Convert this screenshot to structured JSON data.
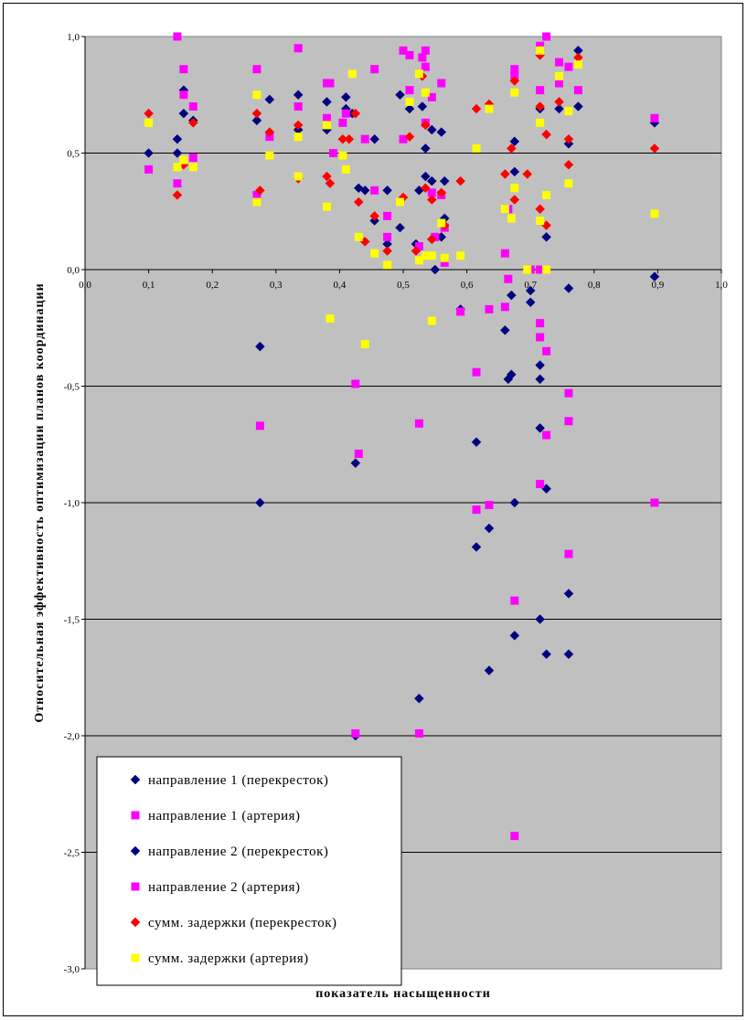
{
  "chart_data": {
    "type": "scatter",
    "title": "",
    "xlabel": "показатель насыщенности",
    "ylabel": "Относительная эффективность оптимизации планов координации",
    "xlim": [
      0,
      1
    ],
    "ylim": [
      -3,
      1
    ],
    "x_ticks": [
      "0,0",
      "0,1",
      "0,2",
      "0,3",
      "0,4",
      "0,5",
      "0,6",
      "0,7",
      "0,8",
      "0,9",
      "1,0"
    ],
    "y_ticks": [
      "1,0",
      "0,5",
      "0,0",
      "-0,5",
      "-1,0",
      "-1,5",
      "-2,0",
      "-2,5",
      "-3,0"
    ],
    "y_tick_values": [
      1,
      0.5,
      0,
      -0.5,
      -1,
      -1.5,
      -2,
      -2.5,
      -3
    ],
    "grid": "horizontal",
    "legend_position": "bottom-left",
    "series": [
      {
        "name": "направление 1 (перекресток)",
        "marker": "diamond",
        "color": "#000080",
        "points": [
          [
            0.1,
            0.5
          ],
          [
            0.145,
            0.56
          ],
          [
            0.145,
            0.5
          ],
          [
            0.155,
            0.77
          ],
          [
            0.155,
            0.67
          ],
          [
            0.17,
            0.64
          ],
          [
            0.27,
            0.64
          ],
          [
            0.29,
            0.73
          ],
          [
            0.335,
            0.75
          ],
          [
            0.335,
            0.6
          ],
          [
            0.38,
            0.72
          ],
          [
            0.38,
            0.6
          ],
          [
            0.41,
            0.69
          ],
          [
            0.41,
            0.74
          ],
          [
            0.42,
            0.67
          ],
          [
            0.43,
            0.35
          ],
          [
            0.44,
            0.34
          ],
          [
            0.455,
            0.56
          ],
          [
            0.455,
            0.21
          ],
          [
            0.475,
            0.34
          ],
          [
            0.475,
            0.11
          ],
          [
            0.495,
            0.75
          ],
          [
            0.495,
            0.18
          ],
          [
            0.51,
            0.69
          ],
          [
            0.52,
            0.11
          ],
          [
            0.525,
            0.34
          ],
          [
            0.53,
            0.7
          ],
          [
            0.535,
            0.52
          ],
          [
            0.535,
            0.4
          ],
          [
            0.545,
            0.6
          ],
          [
            0.545,
            0.38
          ],
          [
            0.545,
            0.13
          ],
          [
            0.55,
            0.0
          ],
          [
            0.56,
            0.59
          ],
          [
            0.56,
            0.14
          ],
          [
            0.565,
            0.38
          ],
          [
            0.565,
            0.22
          ],
          [
            0.59,
            -0.17
          ],
          [
            0.615,
            -0.74
          ],
          [
            0.615,
            -1.19
          ],
          [
            0.635,
            -1.11
          ],
          [
            0.635,
            -1.72
          ],
          [
            0.66,
            -0.26
          ],
          [
            0.665,
            -0.47
          ],
          [
            0.67,
            -0.11
          ],
          [
            0.67,
            -0.45
          ],
          [
            0.675,
            0.42
          ],
          [
            0.675,
            0.55
          ],
          [
            0.675,
            -1.0
          ],
          [
            0.675,
            -1.57
          ],
          [
            0.7,
            -0.09
          ],
          [
            0.7,
            -0.14
          ],
          [
            0.715,
            0.69
          ],
          [
            0.715,
            -0.41
          ],
          [
            0.715,
            -0.47
          ],
          [
            0.715,
            -0.68
          ],
          [
            0.715,
            -1.5
          ],
          [
            0.725,
            0.58
          ],
          [
            0.725,
            0.14
          ],
          [
            0.725,
            -0.94
          ],
          [
            0.725,
            -1.65
          ],
          [
            0.745,
            0.69
          ],
          [
            0.76,
            0.54
          ],
          [
            0.76,
            -0.08
          ],
          [
            0.76,
            -1.39
          ],
          [
            0.76,
            -1.65
          ],
          [
            0.775,
            0.94
          ],
          [
            0.775,
            0.7
          ],
          [
            0.895,
            0.63
          ],
          [
            0.895,
            -0.03
          ],
          [
            0.275,
            -0.33
          ],
          [
            0.275,
            -1.0
          ],
          [
            0.425,
            -0.83
          ],
          [
            0.425,
            -2.0
          ],
          [
            0.525,
            -1.84
          ]
        ]
      },
      {
        "name": "направление 1 (артерия)",
        "marker": "square",
        "color": "#FF00FF",
        "points": [
          [
            0.1,
            0.43
          ],
          [
            0.145,
            1.0
          ],
          [
            0.145,
            0.37
          ],
          [
            0.155,
            0.86
          ],
          [
            0.155,
            0.75
          ],
          [
            0.17,
            0.7
          ],
          [
            0.17,
            0.48
          ],
          [
            0.27,
            0.86
          ],
          [
            0.27,
            0.32
          ],
          [
            0.29,
            0.57
          ],
          [
            0.335,
            0.95
          ],
          [
            0.335,
            0.7
          ],
          [
            0.38,
            0.8
          ],
          [
            0.38,
            0.65
          ],
          [
            0.385,
            0.8
          ],
          [
            0.39,
            0.5
          ],
          [
            0.405,
            0.63
          ],
          [
            0.41,
            0.67
          ],
          [
            0.44,
            0.56
          ],
          [
            0.455,
            0.86
          ],
          [
            0.455,
            0.34
          ],
          [
            0.475,
            0.23
          ],
          [
            0.475,
            0.14
          ],
          [
            0.5,
            0.94
          ],
          [
            0.5,
            0.56
          ],
          [
            0.51,
            0.77
          ],
          [
            0.51,
            0.92
          ],
          [
            0.525,
            0.1
          ],
          [
            0.53,
            0.91
          ],
          [
            0.535,
            0.94
          ],
          [
            0.535,
            0.87
          ],
          [
            0.535,
            0.63
          ],
          [
            0.545,
            0.74
          ],
          [
            0.545,
            0.33
          ],
          [
            0.55,
            0.14
          ],
          [
            0.56,
            0.8
          ],
          [
            0.56,
            0.32
          ],
          [
            0.565,
            0.18
          ],
          [
            0.565,
            0.03
          ],
          [
            0.59,
            -0.18
          ],
          [
            0.615,
            -0.44
          ],
          [
            0.615,
            -1.03
          ],
          [
            0.635,
            -0.17
          ],
          [
            0.635,
            -1.01
          ],
          [
            0.66,
            0.07
          ],
          [
            0.66,
            -0.16
          ],
          [
            0.665,
            0.26
          ],
          [
            0.665,
            -0.04
          ],
          [
            0.675,
            0.86
          ],
          [
            0.675,
            0.83
          ],
          [
            0.675,
            -1.42
          ],
          [
            0.675,
            -2.43
          ],
          [
            0.7,
            0.0
          ],
          [
            0.715,
            0.96
          ],
          [
            0.715,
            0.77
          ],
          [
            0.715,
            0.0
          ],
          [
            0.715,
            -0.23
          ],
          [
            0.715,
            -0.29
          ],
          [
            0.715,
            -0.92
          ],
          [
            0.725,
            1.0
          ],
          [
            0.725,
            -0.35
          ],
          [
            0.725,
            -0.71
          ],
          [
            0.745,
            0.89
          ],
          [
            0.745,
            0.8
          ],
          [
            0.76,
            0.87
          ],
          [
            0.76,
            -0.53
          ],
          [
            0.76,
            -0.65
          ],
          [
            0.76,
            -1.22
          ],
          [
            0.775,
            0.77
          ],
          [
            0.895,
            0.65
          ],
          [
            0.895,
            -1.0
          ],
          [
            0.275,
            -0.67
          ],
          [
            0.425,
            -0.49
          ],
          [
            0.43,
            -0.79
          ],
          [
            0.425,
            -1.99
          ],
          [
            0.525,
            -0.66
          ],
          [
            0.525,
            -1.99
          ]
        ]
      },
      {
        "name": "направление 2 (перекресток)",
        "marker": "diamond",
        "color": "#000080",
        "points": []
      },
      {
        "name": "направление 2 (артерия)",
        "marker": "square",
        "color": "#FF00FF",
        "points": []
      },
      {
        "name": "сумм. задержки (перекресток)",
        "marker": "diamond",
        "color": "#FF0000",
        "points": [
          [
            0.1,
            0.67
          ],
          [
            0.145,
            0.32
          ],
          [
            0.155,
            0.45
          ],
          [
            0.17,
            0.63
          ],
          [
            0.27,
            0.67
          ],
          [
            0.275,
            0.34
          ],
          [
            0.29,
            0.59
          ],
          [
            0.335,
            0.39
          ],
          [
            0.335,
            0.62
          ],
          [
            0.38,
            0.4
          ],
          [
            0.385,
            0.37
          ],
          [
            0.405,
            0.56
          ],
          [
            0.415,
            0.56
          ],
          [
            0.425,
            0.67
          ],
          [
            0.43,
            0.29
          ],
          [
            0.44,
            0.12
          ],
          [
            0.455,
            0.23
          ],
          [
            0.475,
            0.08
          ],
          [
            0.5,
            0.31
          ],
          [
            0.51,
            0.57
          ],
          [
            0.52,
            0.08
          ],
          [
            0.53,
            0.83
          ],
          [
            0.535,
            0.62
          ],
          [
            0.535,
            0.35
          ],
          [
            0.545,
            0.3
          ],
          [
            0.545,
            0.13
          ],
          [
            0.56,
            0.33
          ],
          [
            0.565,
            0.19
          ],
          [
            0.59,
            0.38
          ],
          [
            0.615,
            0.69
          ],
          [
            0.635,
            0.71
          ],
          [
            0.66,
            0.41
          ],
          [
            0.67,
            0.52
          ],
          [
            0.675,
            0.81
          ],
          [
            0.675,
            0.3
          ],
          [
            0.695,
            0.41
          ],
          [
            0.715,
            0.92
          ],
          [
            0.715,
            0.7
          ],
          [
            0.715,
            0.26
          ],
          [
            0.725,
            0.58
          ],
          [
            0.725,
            0.19
          ],
          [
            0.745,
            0.72
          ],
          [
            0.76,
            0.56
          ],
          [
            0.76,
            0.45
          ],
          [
            0.775,
            0.91
          ],
          [
            0.895,
            0.52
          ]
        ]
      },
      {
        "name": "сумм. задержки (артерия)",
        "marker": "square",
        "color": "#FFFF00",
        "points": [
          [
            0.1,
            0.63
          ],
          [
            0.145,
            0.44
          ],
          [
            0.155,
            0.47
          ],
          [
            0.17,
            0.44
          ],
          [
            0.27,
            0.75
          ],
          [
            0.27,
            0.29
          ],
          [
            0.29,
            0.49
          ],
          [
            0.335,
            0.4
          ],
          [
            0.335,
            0.57
          ],
          [
            0.38,
            0.62
          ],
          [
            0.38,
            0.27
          ],
          [
            0.385,
            -0.21
          ],
          [
            0.405,
            0.49
          ],
          [
            0.41,
            0.43
          ],
          [
            0.42,
            0.84
          ],
          [
            0.43,
            0.14
          ],
          [
            0.44,
            -0.32
          ],
          [
            0.455,
            0.07
          ],
          [
            0.475,
            0.02
          ],
          [
            0.495,
            0.29
          ],
          [
            0.51,
            0.72
          ],
          [
            0.525,
            0.84
          ],
          [
            0.525,
            0.04
          ],
          [
            0.535,
            0.76
          ],
          [
            0.535,
            0.06
          ],
          [
            0.545,
            0.06
          ],
          [
            0.545,
            -0.22
          ],
          [
            0.56,
            0.2
          ],
          [
            0.565,
            0.05
          ],
          [
            0.59,
            0.06
          ],
          [
            0.615,
            0.52
          ],
          [
            0.635,
            0.69
          ],
          [
            0.66,
            0.26
          ],
          [
            0.67,
            0.22
          ],
          [
            0.675,
            0.76
          ],
          [
            0.675,
            0.35
          ],
          [
            0.695,
            0.0
          ],
          [
            0.715,
            0.94
          ],
          [
            0.715,
            0.63
          ],
          [
            0.715,
            0.21
          ],
          [
            0.725,
            0.32
          ],
          [
            0.725,
            0.0
          ],
          [
            0.745,
            0.83
          ],
          [
            0.76,
            0.68
          ],
          [
            0.76,
            0.37
          ],
          [
            0.775,
            0.88
          ],
          [
            0.895,
            0.24
          ]
        ]
      }
    ]
  }
}
